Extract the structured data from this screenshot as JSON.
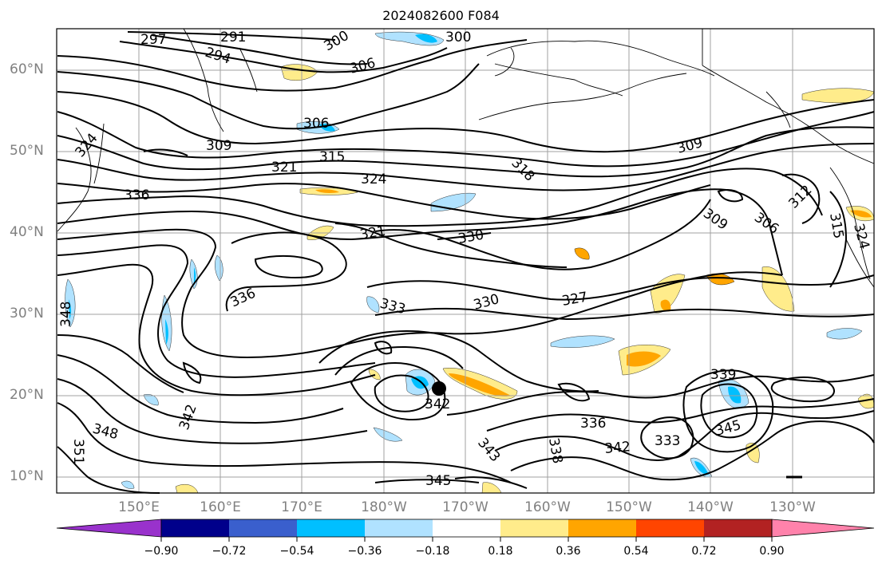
{
  "title": "2024082600 F084",
  "lat_labels": [
    "60°N",
    "50°N",
    "40°N",
    "30°N",
    "20°N",
    "10°N"
  ],
  "lon_labels": [
    "150°E",
    "160°E",
    "170°E",
    "180°W",
    "170°W",
    "160°W",
    "150°W",
    "140°W",
    "130°W"
  ],
  "colorbar": {
    "tick_labels": [
      "−0.90",
      "−0.72",
      "−0.54",
      "−0.36",
      "−0.18",
      "0.18",
      "0.36",
      "0.54",
      "0.72",
      "0.90"
    ],
    "bins": [
      {
        "color": "#9932cc"
      },
      {
        "color": "#00008b"
      },
      {
        "color": "#3a5fcd"
      },
      {
        "color": "#00bfff"
      },
      {
        "color": "#b0e2ff"
      },
      {
        "color": "#ffffff"
      },
      {
        "color": "#ffec8b"
      },
      {
        "color": "#ffa500"
      },
      {
        "color": "#ff4500"
      },
      {
        "color": "#b22222"
      },
      {
        "color": "#ff82ab"
      }
    ]
  },
  "contour_labels": [
    "297",
    "291",
    "294",
    "300",
    "300",
    "306",
    "306",
    "309",
    "315",
    "321",
    "324",
    "324",
    "336",
    "309",
    "318",
    "309",
    "306",
    "312",
    "321",
    "330",
    "336",
    "333",
    "330",
    "327",
    "348",
    "342",
    "348",
    "351",
    "342",
    "339",
    "336",
    "345",
    "333",
    "342",
    "338",
    "343",
    "345",
    "315",
    "324"
  ],
  "storm_marker": "black-dot",
  "colors": {
    "contour": "#000000",
    "grid": "#a0a0a0",
    "coast": "#000000"
  }
}
